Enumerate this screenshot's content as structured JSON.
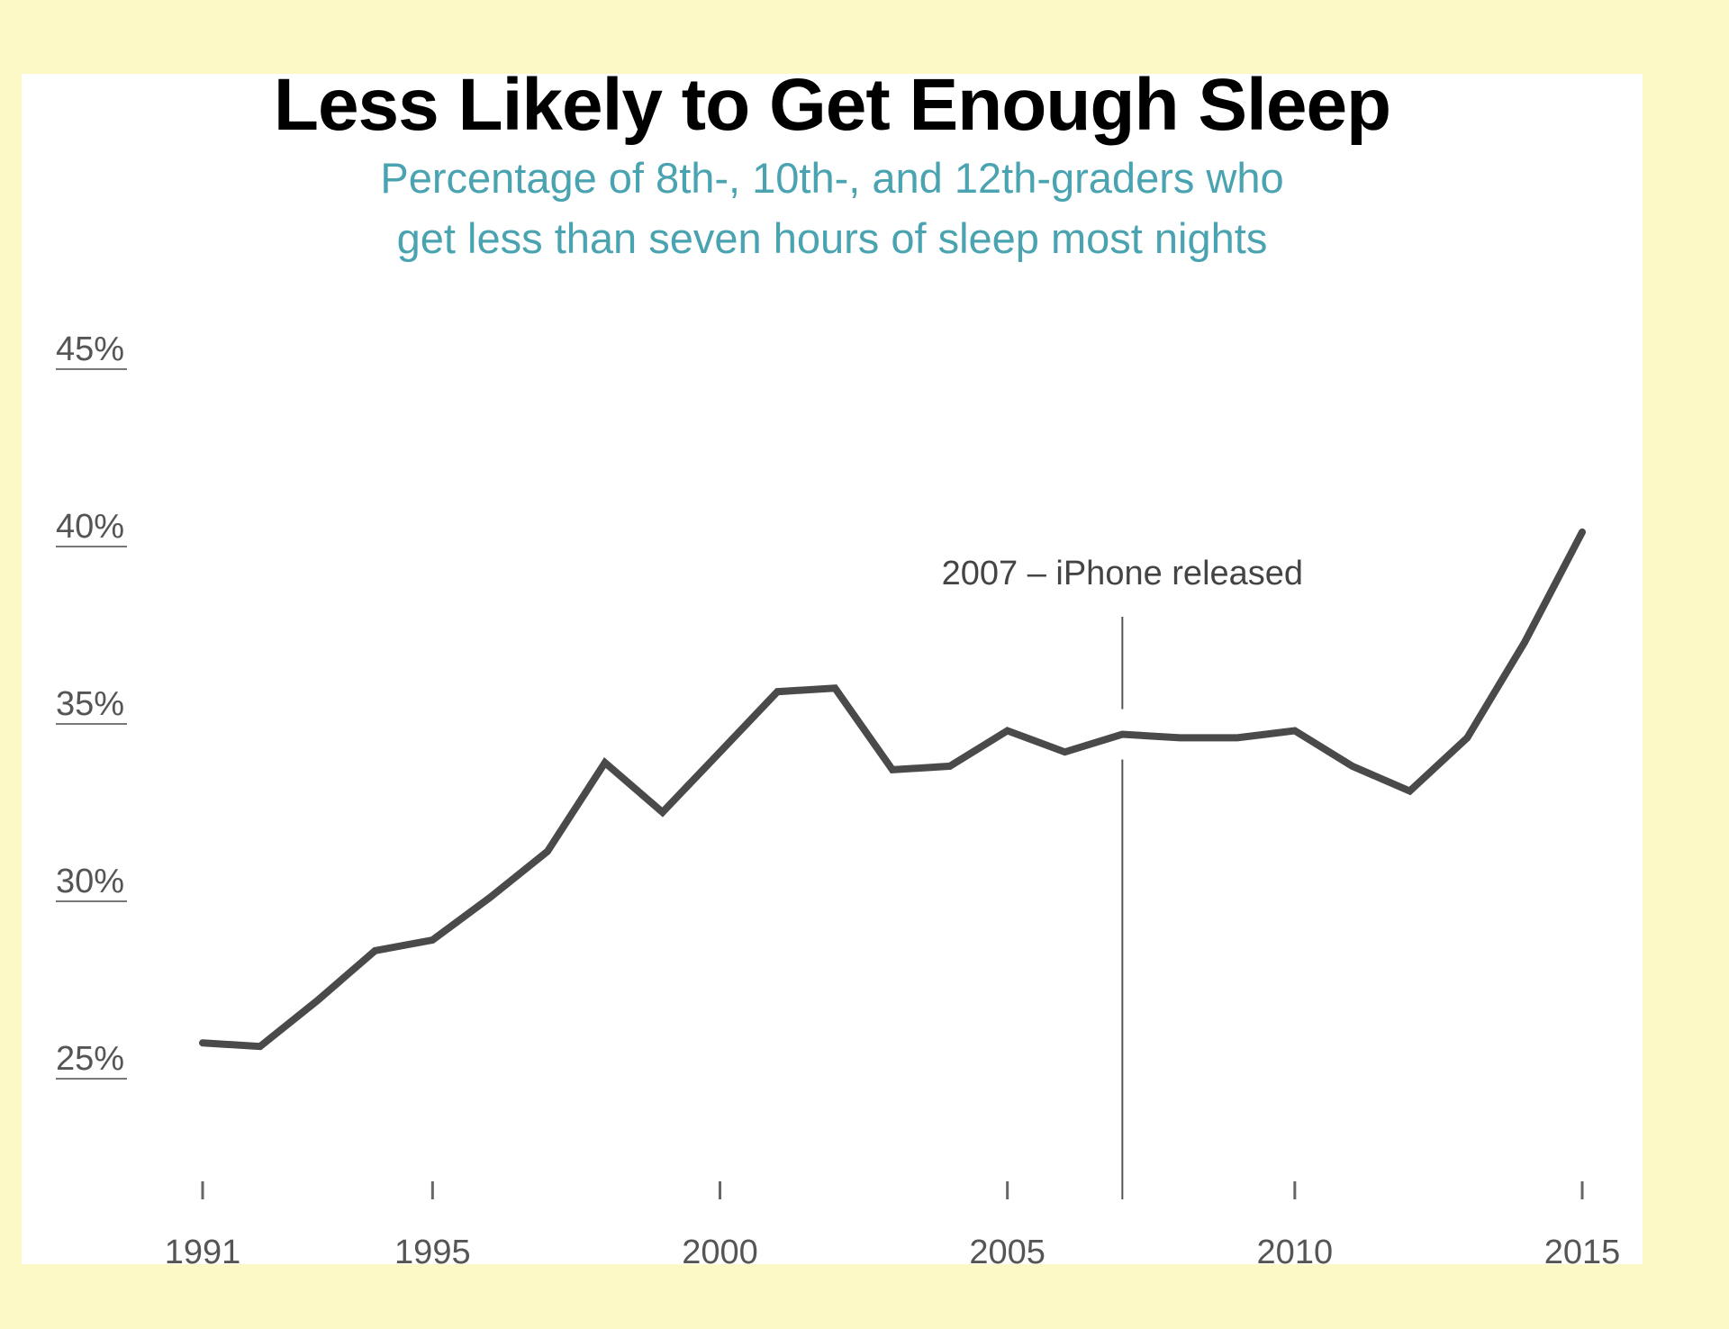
{
  "chart_data": {
    "type": "line",
    "title": "Less Likely to Get Enough Sleep",
    "subtitle_lines": [
      "Percentage of 8th-, 10th-, and 12th-graders who",
      "get less than seven hours of sleep most nights"
    ],
    "xlabel": "",
    "ylabel": "",
    "xlim": [
      1991,
      2015
    ],
    "ylim": [
      22,
      45
    ],
    "y_ticks": [
      25,
      30,
      35,
      40,
      45
    ],
    "y_tick_labels": [
      "25%",
      "30%",
      "35%",
      "40%",
      "45%"
    ],
    "x_ticks": [
      1991,
      1995,
      2000,
      2005,
      2010,
      2015
    ],
    "x_tick_labels": [
      "1991",
      "1995",
      "2000",
      "2005",
      "2010",
      "2015"
    ],
    "grid": false,
    "series": [
      {
        "x": [
          1991,
          1992,
          1993,
          1994,
          1995,
          1996,
          1997,
          1998,
          1999,
          2000,
          2001,
          2002,
          2003,
          2004,
          2005,
          2006,
          2007,
          2008,
          2009,
          2010,
          2011,
          2012,
          2013,
          2014,
          2015
        ],
        "values": [
          25.4,
          25.3,
          26.6,
          28.0,
          28.3,
          29.5,
          30.8,
          33.3,
          31.9,
          33.6,
          35.3,
          35.4,
          33.1,
          33.2,
          34.2,
          33.6,
          34.1,
          34.0,
          34.0,
          34.2,
          33.2,
          32.5,
          34.0,
          36.7,
          39.8
        ]
      }
    ],
    "annotations": [
      {
        "x": 2007,
        "label": "2007 – iPhone released"
      }
    ],
    "colors": {
      "line": "#4a4a4a",
      "subtitle": "#4aa3b0",
      "page_background": "#fdf9c6"
    }
  }
}
